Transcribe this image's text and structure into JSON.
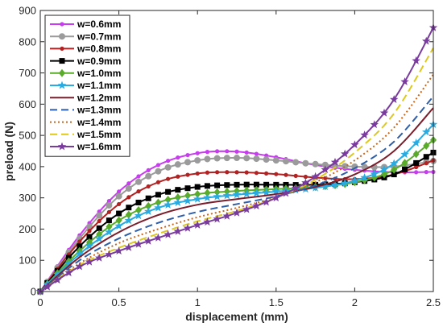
{
  "chart_data": {
    "type": "line",
    "title": "",
    "xlabel": "displacement (mm)",
    "ylabel": "preload (N)",
    "xlim": [
      0,
      2.5
    ],
    "ylim": [
      0,
      900
    ],
    "xticks": [
      0,
      0.5,
      1,
      1.5,
      2,
      2.5
    ],
    "xtick_labels": [
      "0",
      "0.5",
      "1",
      "1.5",
      "2",
      "2.5"
    ],
    "yticks": [
      0,
      100,
      200,
      300,
      400,
      500,
      600,
      700,
      800,
      900
    ],
    "ytick_labels": [
      "0",
      "100",
      "200",
      "300",
      "400",
      "500",
      "600",
      "700",
      "800",
      "900"
    ],
    "grid": false,
    "legend_position": "top-left",
    "series": [
      {
        "name": "w=0.6mm",
        "color": "#c83cf0",
        "dash": "solid",
        "marker": "dot",
        "points": [
          [
            0,
            0
          ],
          [
            0.25,
            180
          ],
          [
            0.5,
            320
          ],
          [
            0.75,
            405
          ],
          [
            1.0,
            443
          ],
          [
            1.25,
            448
          ],
          [
            1.5,
            430
          ],
          [
            1.75,
            405
          ],
          [
            2.0,
            390
          ],
          [
            2.25,
            382
          ],
          [
            2.5,
            383
          ]
        ]
      },
      {
        "name": "w=0.7mm",
        "color": "#9b9b9b",
        "dash": "solid",
        "marker": "circle",
        "points": [
          [
            0,
            0
          ],
          [
            0.25,
            170
          ],
          [
            0.5,
            305
          ],
          [
            0.75,
            385
          ],
          [
            1.0,
            420
          ],
          [
            1.25,
            428
          ],
          [
            1.5,
            420
          ],
          [
            1.75,
            408
          ],
          [
            2.0,
            400
          ],
          [
            2.25,
            400
          ],
          [
            2.5,
            418
          ]
        ]
      },
      {
        "name": "w=0.8mm",
        "color": "#b22222",
        "dash": "solid",
        "marker": "dot",
        "points": [
          [
            0,
            0
          ],
          [
            0.25,
            160
          ],
          [
            0.5,
            280
          ],
          [
            0.75,
            350
          ],
          [
            1.0,
            378
          ],
          [
            1.25,
            382
          ],
          [
            1.5,
            376
          ],
          [
            1.75,
            365
          ],
          [
            2.0,
            360
          ],
          [
            2.25,
            375
          ],
          [
            2.5,
            420
          ]
        ]
      },
      {
        "name": "w=0.9mm",
        "color": "#000000",
        "dash": "solid",
        "marker": "square",
        "points": [
          [
            0,
            0
          ],
          [
            0.25,
            145
          ],
          [
            0.5,
            250
          ],
          [
            0.75,
            310
          ],
          [
            1.0,
            335
          ],
          [
            1.25,
            342
          ],
          [
            1.5,
            342
          ],
          [
            1.75,
            342
          ],
          [
            2.0,
            350
          ],
          [
            2.25,
            375
          ],
          [
            2.5,
            445
          ]
        ]
      },
      {
        "name": "w=1.0mm",
        "color": "#5aab2a",
        "dash": "solid",
        "marker": "diamond",
        "points": [
          [
            0,
            0
          ],
          [
            0.25,
            130
          ],
          [
            0.5,
            228
          ],
          [
            0.75,
            285
          ],
          [
            1.0,
            312
          ],
          [
            1.25,
            322
          ],
          [
            1.5,
            328
          ],
          [
            1.75,
            335
          ],
          [
            2.0,
            350
          ],
          [
            2.25,
            390
          ],
          [
            2.5,
            485
          ]
        ]
      },
      {
        "name": "w=1.1mm",
        "color": "#29abe2",
        "dash": "solid",
        "marker": "star",
        "points": [
          [
            0,
            0
          ],
          [
            0.25,
            120
          ],
          [
            0.5,
            210
          ],
          [
            0.75,
            268
          ],
          [
            1.0,
            296
          ],
          [
            1.25,
            310
          ],
          [
            1.5,
            320
          ],
          [
            1.75,
            332
          ],
          [
            2.0,
            355
          ],
          [
            2.25,
            410
          ],
          [
            2.5,
            535
          ]
        ]
      },
      {
        "name": "w=1.2mm",
        "color": "#7b1e2b",
        "dash": "solid",
        "marker": "none",
        "points": [
          [
            0,
            0
          ],
          [
            0.25,
            110
          ],
          [
            0.5,
            190
          ],
          [
            0.75,
            245
          ],
          [
            1.0,
            278
          ],
          [
            1.25,
            296
          ],
          [
            1.5,
            312
          ],
          [
            1.75,
            335
          ],
          [
            2.0,
            375
          ],
          [
            2.25,
            450
          ],
          [
            2.5,
            588
          ]
        ]
      },
      {
        "name": "w=1.3mm",
        "color": "#2e5ea8",
        "dash": "dashed",
        "marker": "none",
        "points": [
          [
            0,
            0
          ],
          [
            0.25,
            100
          ],
          [
            0.5,
            170
          ],
          [
            0.75,
            220
          ],
          [
            1.0,
            255
          ],
          [
            1.25,
            280
          ],
          [
            1.5,
            305
          ],
          [
            1.75,
            340
          ],
          [
            2.0,
            395
          ],
          [
            2.25,
            480
          ],
          [
            2.5,
            625
          ]
        ]
      },
      {
        "name": "w=1.4mm",
        "color": "#c8661a",
        "dash": "dotted",
        "marker": "none",
        "points": [
          [
            0,
            0
          ],
          [
            0.25,
            90
          ],
          [
            0.5,
            155
          ],
          [
            0.75,
            200
          ],
          [
            1.0,
            238
          ],
          [
            1.25,
            268
          ],
          [
            1.5,
            302
          ],
          [
            1.75,
            350
          ],
          [
            2.0,
            420
          ],
          [
            2.25,
            525
          ],
          [
            2.5,
            695
          ]
        ]
      },
      {
        "name": "w=1.5mm",
        "color": "#dcc81e",
        "dash": "dashed",
        "marker": "none",
        "points": [
          [
            0,
            0
          ],
          [
            0.25,
            85
          ],
          [
            0.5,
            140
          ],
          [
            0.75,
            185
          ],
          [
            1.0,
            225
          ],
          [
            1.25,
            258
          ],
          [
            1.5,
            300
          ],
          [
            1.75,
            358
          ],
          [
            2.0,
            445
          ],
          [
            2.25,
            570
          ],
          [
            2.5,
            780
          ]
        ]
      },
      {
        "name": "w=1.6mm",
        "color": "#7a3b9e",
        "dash": "solid",
        "marker": "star",
        "points": [
          [
            0,
            0
          ],
          [
            0.25,
            80
          ],
          [
            0.5,
            130
          ],
          [
            0.75,
            172
          ],
          [
            1.0,
            213
          ],
          [
            1.25,
            252
          ],
          [
            1.5,
            300
          ],
          [
            1.75,
            368
          ],
          [
            2.0,
            470
          ],
          [
            2.25,
            615
          ],
          [
            2.5,
            845
          ]
        ]
      }
    ]
  }
}
